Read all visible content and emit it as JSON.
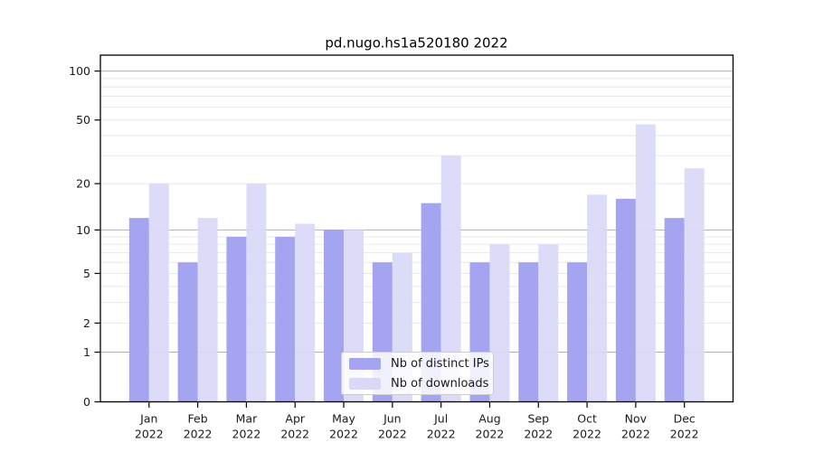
{
  "chart_data": {
    "type": "bar",
    "title": "pd.nugo.hs1a520180 2022",
    "year_label": "2022",
    "categories": [
      "Jan",
      "Feb",
      "Mar",
      "Apr",
      "May",
      "Jun",
      "Jul",
      "Aug",
      "Sep",
      "Oct",
      "Nov",
      "Dec"
    ],
    "series": [
      {
        "name": "Nb of distinct IPs",
        "color": "#a4a4f1",
        "values": [
          12,
          6,
          9,
          9,
          10,
          6,
          15,
          6,
          6,
          6,
          16,
          12
        ]
      },
      {
        "name": "Nb of downloads",
        "color": "#d9d9f7",
        "values": [
          20,
          12,
          20,
          11,
          10,
          7,
          30,
          8,
          8,
          17,
          47,
          25
        ]
      }
    ],
    "yscale": "log(1+y)",
    "yticks": [
      0,
      1,
      2,
      5,
      10,
      20,
      50,
      100
    ],
    "ylim": [
      0,
      125
    ],
    "grid": true,
    "legend_position": "lower center",
    "colors": {
      "major_gridline": "#b0b0b0",
      "minor_gridline": "#e8e8e8",
      "axis": "#000000",
      "text": "#1a1a1a"
    }
  }
}
